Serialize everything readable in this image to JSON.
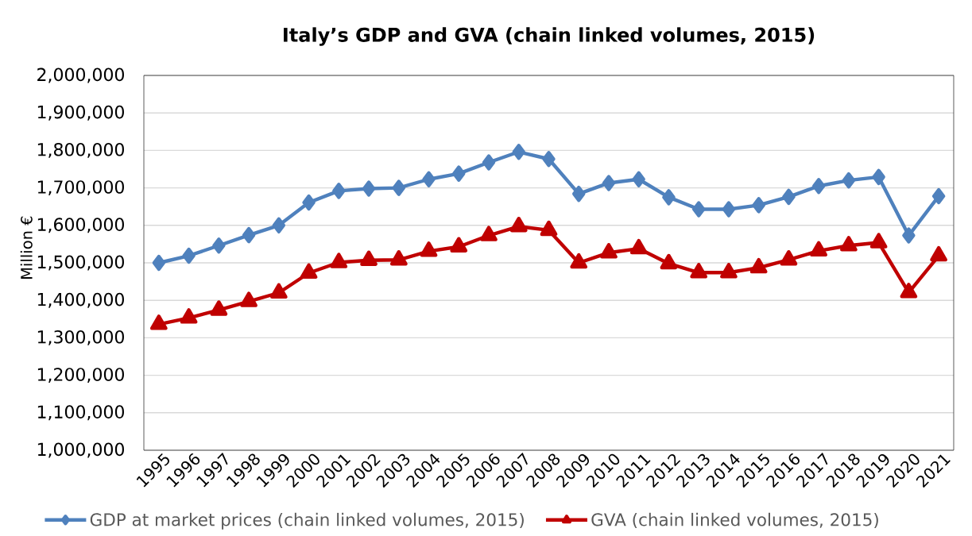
{
  "chart_data": {
    "type": "line",
    "title": "Italy’s GDP and GVA (chain linked volumes, 2015)",
    "ylabel": "Million €",
    "categories": [
      "1995",
      "1996",
      "1997",
      "1998",
      "1999",
      "2000",
      "2001",
      "2002",
      "2003",
      "2004",
      "2005",
      "2006",
      "2007",
      "2008",
      "2009",
      "2010",
      "2011",
      "2012",
      "2013",
      "2014",
      "2015",
      "2016",
      "2017",
      "2018",
      "2019",
      "2020",
      "2021"
    ],
    "series": [
      {
        "name": "GDP at market prices (chain linked volumes, 2015)",
        "color": "#4f81bd",
        "marker": "diamond",
        "values": [
          1500000,
          1519000,
          1546000,
          1574000,
          1600000,
          1661000,
          1692000,
          1698000,
          1700000,
          1723000,
          1738000,
          1768000,
          1796000,
          1777000,
          1684000,
          1713000,
          1723000,
          1675000,
          1643000,
          1643000,
          1654000,
          1676000,
          1705000,
          1720000,
          1729000,
          1573000,
          1678000
        ]
      },
      {
        "name": "GVA (chain linked volumes, 2015)",
        "color": "#c00000",
        "marker": "triangle",
        "values": [
          1336000,
          1353000,
          1374000,
          1397000,
          1420000,
          1473000,
          1501000,
          1507000,
          1508000,
          1531000,
          1543000,
          1573000,
          1597000,
          1587000,
          1500000,
          1527000,
          1538000,
          1498000,
          1474000,
          1474000,
          1487000,
          1508000,
          1532000,
          1546000,
          1554000,
          1421000,
          1519000
        ]
      }
    ],
    "ylim": [
      1000000,
      2000000
    ],
    "yticks": [
      {
        "value": 1000000,
        "label": "1,000,000"
      },
      {
        "value": 1100000,
        "label": "1,100,000"
      },
      {
        "value": 1200000,
        "label": "1,200,000"
      },
      {
        "value": 1300000,
        "label": "1,300,000"
      },
      {
        "value": 1400000,
        "label": "1,400,000"
      },
      {
        "value": 1500000,
        "label": "1,500,000"
      },
      {
        "value": 1600000,
        "label": "1,600,000"
      },
      {
        "value": 1700000,
        "label": "1,700,000"
      },
      {
        "value": 1800000,
        "label": "1,800,000"
      },
      {
        "value": 1900000,
        "label": "1,900,000"
      },
      {
        "value": 2000000,
        "label": "2,000,000"
      }
    ],
    "grid": "y",
    "legend": "bottom",
    "line_style": "solid"
  }
}
